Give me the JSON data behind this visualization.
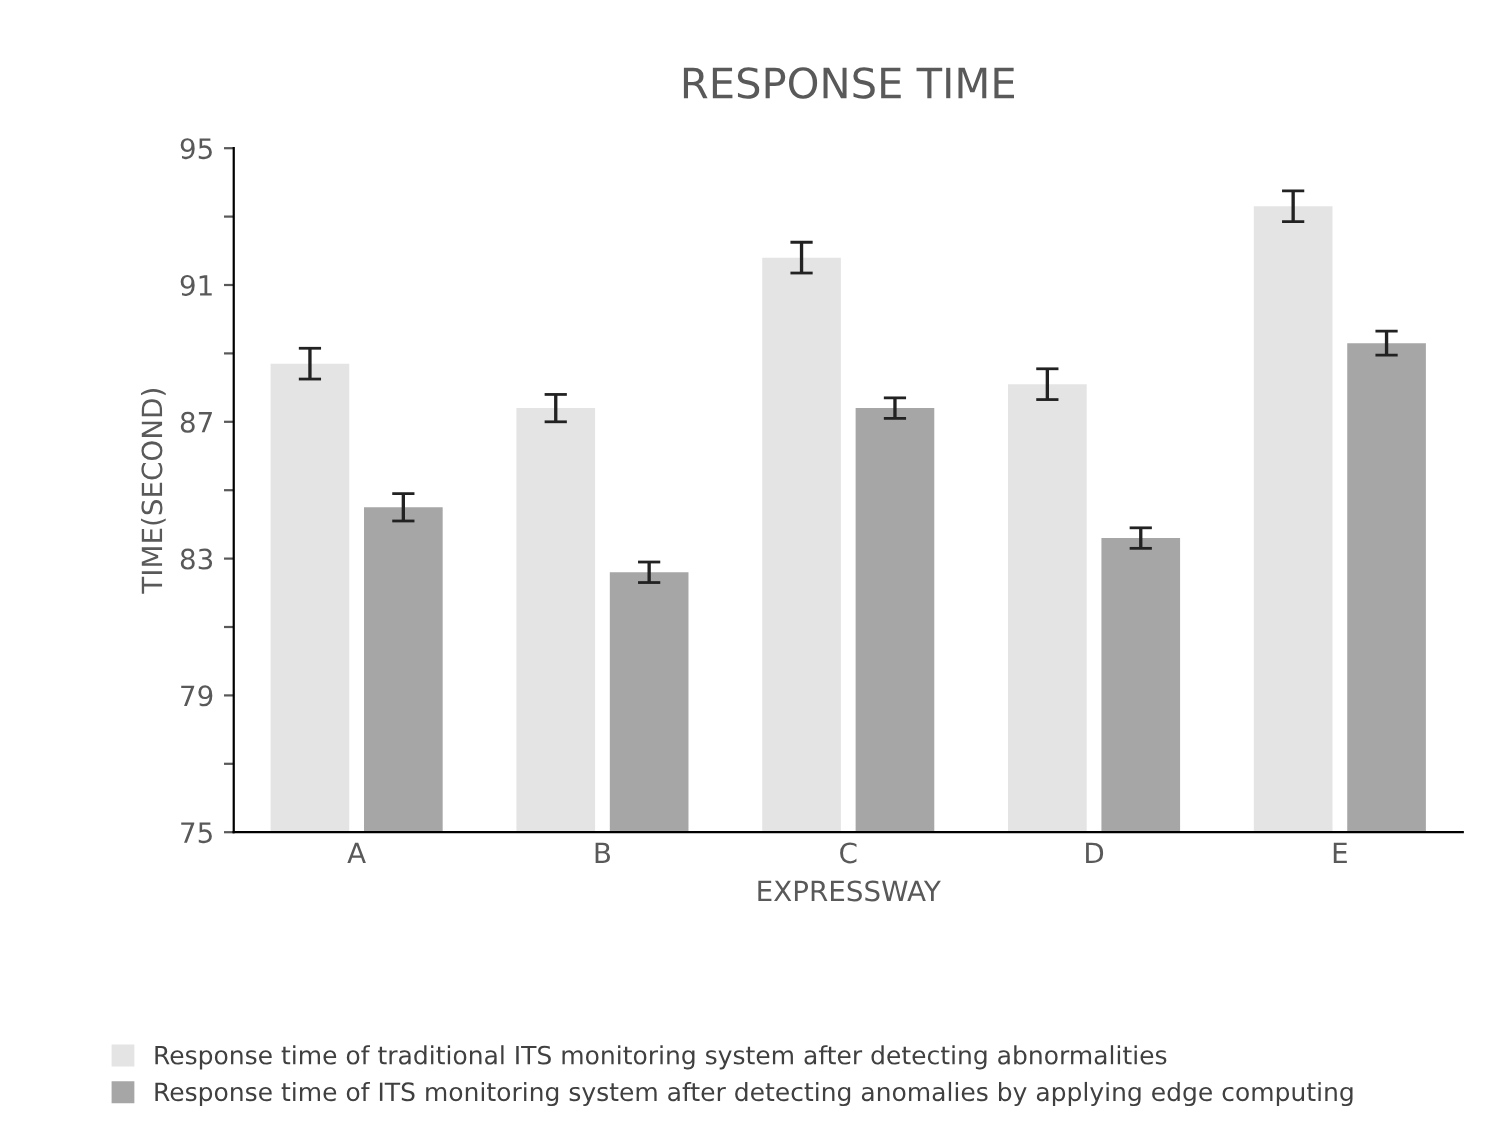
{
  "chart_data": {
    "type": "bar",
    "title": "RESPONSE TIME",
    "xlabel": "EXPRESSWAY",
    "ylabel": "TIME(SECOND)",
    "categories": [
      "A",
      "B",
      "C",
      "D",
      "E"
    ],
    "series": [
      {
        "name": "Response time of traditional ITS monitoring system after detecting abnormalities",
        "color": "#e4e4e4",
        "values": [
          88.7,
          87.4,
          91.8,
          88.1,
          93.3
        ],
        "errors": [
          0.45,
          0.4,
          0.45,
          0.45,
          0.45
        ]
      },
      {
        "name": "Response time of ITS monitoring system after detecting anomalies by applying edge computing",
        "color": "#a6a6a6",
        "values": [
          84.5,
          82.6,
          87.4,
          83.6,
          89.3
        ],
        "errors": [
          0.4,
          0.3,
          0.3,
          0.3,
          0.35
        ]
      }
    ],
    "ylim": [
      75,
      95
    ],
    "yticks": [
      75,
      {
        "value": 77,
        "label": null
      },
      79,
      {
        "value": 81,
        "label": null
      },
      83,
      {
        "value": 85,
        "label": null
      },
      87,
      {
        "value": 89,
        "label": null
      },
      91,
      {
        "value": 93,
        "label": null
      },
      95
    ],
    "grid": false,
    "legend": "bottom"
  }
}
